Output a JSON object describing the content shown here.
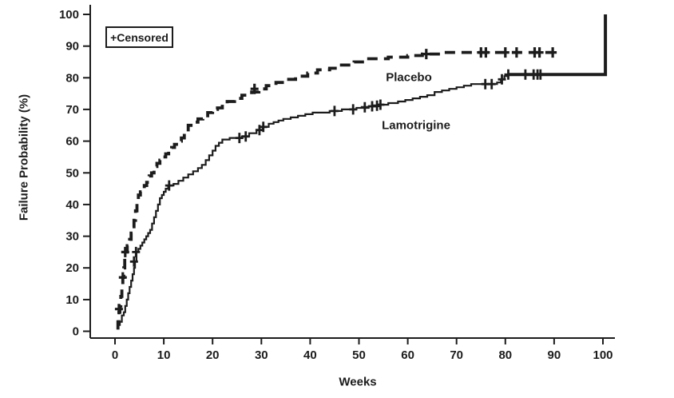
{
  "chart_data": {
    "type": "line",
    "chart_kind": "kaplan-meier-failure-probability-step-curves",
    "title": "",
    "xlabel": "Weeks",
    "ylabel": "Failure Probability (%)",
    "xlim": [
      0,
      100
    ],
    "ylim": [
      0,
      100
    ],
    "xticks": [
      0,
      10,
      20,
      30,
      40,
      50,
      60,
      70,
      80,
      90,
      100
    ],
    "yticks": [
      0,
      10,
      20,
      30,
      40,
      50,
      60,
      70,
      80,
      90,
      100
    ],
    "grid": false,
    "ink_color": "#1c1c1c",
    "legend": {
      "label": "+Censored",
      "position": "top-left"
    },
    "series": [
      {
        "name": "Placebo",
        "annotation": "Placebo",
        "line_style": "dashed",
        "points": [
          [
            0.3,
            1
          ],
          [
            0.6,
            3
          ],
          [
            0.8,
            6
          ],
          [
            1.0,
            8
          ],
          [
            1.2,
            11
          ],
          [
            1.4,
            14
          ],
          [
            1.6,
            17
          ],
          [
            1.8,
            20
          ],
          [
            2.0,
            23
          ],
          [
            2.2,
            25
          ],
          [
            2.5,
            27
          ],
          [
            3.0,
            29
          ],
          [
            3.3,
            31
          ],
          [
            3.6,
            33
          ],
          [
            3.9,
            35
          ],
          [
            4.2,
            38
          ],
          [
            4.5,
            41
          ],
          [
            4.8,
            43
          ],
          [
            5.2,
            44
          ],
          [
            5.6,
            45
          ],
          [
            6.0,
            46
          ],
          [
            6.5,
            47
          ],
          [
            7.0,
            49
          ],
          [
            7.5,
            50
          ],
          [
            8.0,
            52
          ],
          [
            8.6,
            53
          ],
          [
            9.2,
            54
          ],
          [
            9.8,
            55
          ],
          [
            10.4,
            56
          ],
          [
            11.0,
            57
          ],
          [
            11.6,
            58
          ],
          [
            12.2,
            59
          ],
          [
            13.0,
            60
          ],
          [
            13.6,
            61
          ],
          [
            14.2,
            63
          ],
          [
            15.0,
            65
          ],
          [
            16.0,
            66
          ],
          [
            17.0,
            67
          ],
          [
            18.0,
            68
          ],
          [
            19.0,
            69
          ],
          [
            20.0,
            70
          ],
          [
            21.0,
            70.5
          ],
          [
            22.0,
            71.5
          ],
          [
            23.0,
            72.5
          ],
          [
            24.5,
            73.5
          ],
          [
            26.0,
            74.5
          ],
          [
            28.0,
            75.5
          ],
          [
            29.5,
            76.5
          ],
          [
            31.0,
            77.5
          ],
          [
            33.0,
            78.5
          ],
          [
            35.0,
            79.5
          ],
          [
            37.0,
            80.5
          ],
          [
            39.5,
            81.5
          ],
          [
            41.5,
            82.5
          ],
          [
            44.0,
            83
          ],
          [
            46.0,
            84
          ],
          [
            49.0,
            85
          ],
          [
            52.0,
            86
          ],
          [
            56.0,
            86.5
          ],
          [
            60.0,
            87
          ],
          [
            63.0,
            87.5
          ],
          [
            67.0,
            88
          ],
          [
            90.0,
            88
          ]
        ],
        "censored": [
          [
            0.8,
            7
          ],
          [
            1.6,
            17
          ],
          [
            2.1,
            25
          ],
          [
            28.6,
            76.5
          ],
          [
            63.8,
            87.5
          ],
          [
            75.0,
            88
          ],
          [
            76.0,
            88
          ],
          [
            80.0,
            88
          ],
          [
            82.3,
            88
          ],
          [
            86.0,
            88
          ],
          [
            87.0,
            88
          ],
          [
            89.7,
            88
          ]
        ]
      },
      {
        "name": "Lamotrigine",
        "annotation": "Lamotrigine",
        "line_style": "solid",
        "points": [
          [
            0.4,
            1
          ],
          [
            0.7,
            2
          ],
          [
            1.0,
            3
          ],
          [
            1.4,
            5
          ],
          [
            1.8,
            6
          ],
          [
            2.1,
            8
          ],
          [
            2.4,
            10
          ],
          [
            2.7,
            12
          ],
          [
            3.0,
            14
          ],
          [
            3.3,
            16
          ],
          [
            3.6,
            18
          ],
          [
            3.9,
            20
          ],
          [
            4.1,
            22
          ],
          [
            4.4,
            25
          ],
          [
            4.8,
            26
          ],
          [
            5.2,
            27
          ],
          [
            5.6,
            28
          ],
          [
            6.0,
            29
          ],
          [
            6.4,
            30
          ],
          [
            6.8,
            31
          ],
          [
            7.2,
            32
          ],
          [
            7.6,
            34
          ],
          [
            8.0,
            36
          ],
          [
            8.4,
            38
          ],
          [
            8.8,
            40
          ],
          [
            9.2,
            42
          ],
          [
            9.6,
            43
          ],
          [
            10.0,
            44
          ],
          [
            10.4,
            45
          ],
          [
            10.9,
            46
          ],
          [
            12.0,
            46.5
          ],
          [
            13.0,
            47.5
          ],
          [
            14.0,
            48.5
          ],
          [
            15.0,
            49.5
          ],
          [
            16.0,
            50.5
          ],
          [
            17.0,
            51.5
          ],
          [
            17.8,
            52.5
          ],
          [
            18.6,
            54
          ],
          [
            19.3,
            55.5
          ],
          [
            20.0,
            57
          ],
          [
            20.6,
            58.5
          ],
          [
            21.3,
            59.5
          ],
          [
            22.0,
            60.5
          ],
          [
            23.5,
            61
          ],
          [
            26.0,
            61.5
          ],
          [
            27.5,
            62.5
          ],
          [
            29.0,
            63.5
          ],
          [
            30.3,
            64.5
          ],
          [
            31.5,
            65.5
          ],
          [
            32.5,
            66
          ],
          [
            33.5,
            66.5
          ],
          [
            34.5,
            67
          ],
          [
            36.0,
            67.5
          ],
          [
            37.5,
            68
          ],
          [
            39.0,
            68.5
          ],
          [
            40.5,
            69
          ],
          [
            44.0,
            69.5
          ],
          [
            46.5,
            70
          ],
          [
            49.5,
            70.5
          ],
          [
            52.0,
            71
          ],
          [
            54.0,
            71.5
          ],
          [
            56.0,
            72
          ],
          [
            58.0,
            72.5
          ],
          [
            59.5,
            73
          ],
          [
            61.0,
            73.5
          ],
          [
            62.5,
            74
          ],
          [
            64.0,
            74.5
          ],
          [
            65.5,
            75.5
          ],
          [
            67.0,
            76
          ],
          [
            68.5,
            76.5
          ],
          [
            70.0,
            77
          ],
          [
            71.5,
            77.5
          ],
          [
            73.0,
            78
          ],
          [
            78.3,
            78.5
          ],
          [
            79.1,
            79.5
          ],
          [
            79.8,
            80.5
          ],
          [
            80.5,
            81
          ]
        ],
        "tail_points": [
          [
            80.5,
            81
          ],
          [
            100.5,
            81
          ],
          [
            100.5,
            100
          ]
        ],
        "censored": [
          [
            3.9,
            22
          ],
          [
            4.3,
            25
          ],
          [
            11.1,
            46
          ],
          [
            25.5,
            61
          ],
          [
            26.8,
            61.5
          ],
          [
            29.6,
            63.5
          ],
          [
            30.4,
            64.5
          ],
          [
            45.0,
            69.5
          ],
          [
            48.8,
            70
          ],
          [
            51.2,
            70.7
          ],
          [
            52.7,
            71
          ],
          [
            53.7,
            71.2
          ],
          [
            54.4,
            71.5
          ],
          [
            75.9,
            78
          ],
          [
            77.2,
            78
          ],
          [
            79.3,
            79.5
          ],
          [
            80.6,
            81
          ],
          [
            84.1,
            81
          ],
          [
            85.8,
            81
          ],
          [
            86.6,
            81
          ],
          [
            87.2,
            81
          ]
        ]
      }
    ]
  }
}
